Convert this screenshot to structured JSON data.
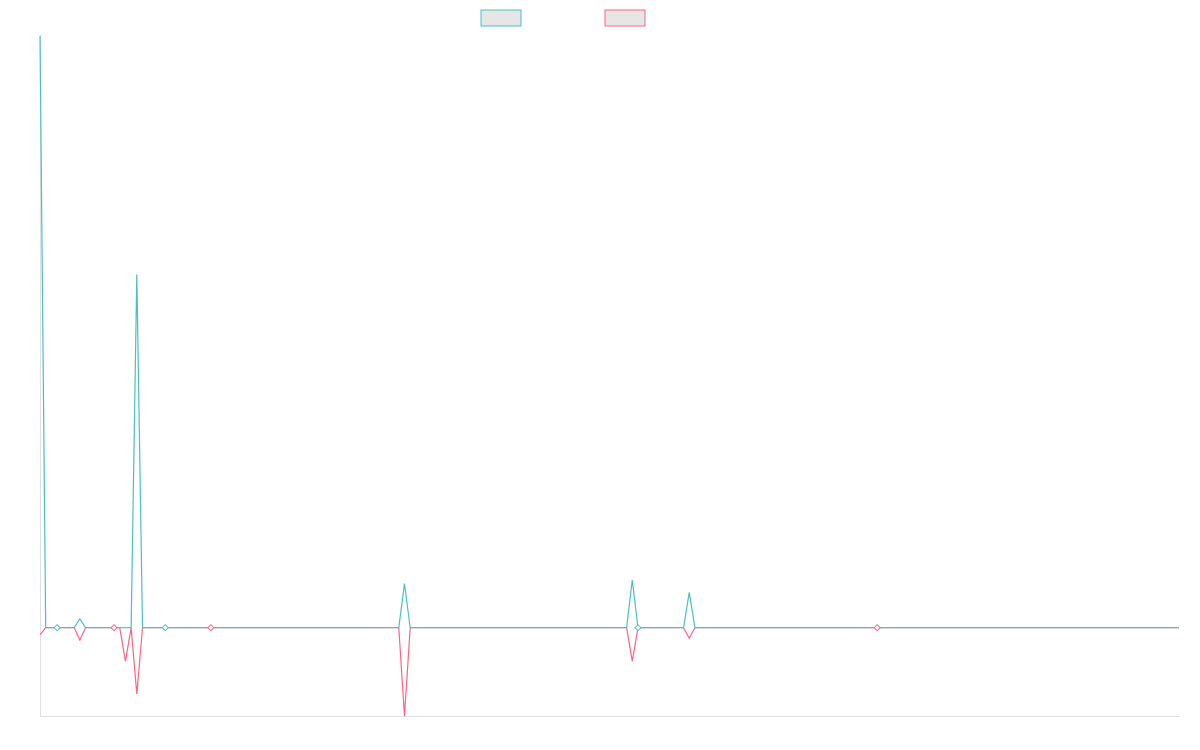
{
  "chart_data": {
    "type": "line",
    "title": "",
    "xlabel": "",
    "ylabel": "",
    "legend_position": "top-center",
    "grid": false,
    "x_range": [
      0,
      200
    ],
    "ylim": [
      -100,
      670
    ],
    "colors": {
      "series1": "#4bc0c0",
      "series2": "#ff6384",
      "legend_fill": "#e6e6e6",
      "axis": "#e0e0e0"
    },
    "series": [
      {
        "color": "#4bc0c0",
        "values": [
          670,
          0,
          0,
          0,
          0,
          0,
          0,
          10,
          0,
          0,
          0,
          0,
          0,
          0,
          0,
          0,
          0,
          400,
          0,
          0,
          0,
          0,
          0,
          0,
          0,
          0,
          0,
          0,
          0,
          0,
          0,
          0,
          0,
          0,
          0,
          0,
          0,
          0,
          0,
          0,
          0,
          0,
          0,
          0,
          0,
          0,
          0,
          0,
          0,
          0,
          0,
          0,
          0,
          0,
          0,
          0,
          0,
          0,
          0,
          0,
          0,
          0,
          0,
          0,
          50,
          0,
          0,
          0,
          0,
          0,
          0,
          0,
          0,
          0,
          0,
          0,
          0,
          0,
          0,
          0,
          0,
          0,
          0,
          0,
          0,
          0,
          0,
          0,
          0,
          0,
          0,
          0,
          0,
          0,
          0,
          0,
          0,
          0,
          0,
          0,
          0,
          0,
          0,
          0,
          54,
          0,
          0,
          0,
          0,
          0,
          0,
          0,
          0,
          0,
          40,
          0,
          0,
          0,
          0,
          0,
          0,
          0,
          0,
          0,
          0,
          0,
          0,
          0,
          0,
          0,
          0,
          0,
          0,
          0,
          0,
          0,
          0,
          0,
          0,
          0,
          0,
          0,
          0,
          0,
          0,
          0,
          0,
          0,
          0,
          0,
          0,
          0,
          0,
          0,
          0,
          0,
          0,
          0,
          0,
          0,
          0,
          0,
          0,
          0,
          0,
          0,
          0,
          0,
          0,
          0,
          0,
          0,
          0,
          0,
          0,
          0,
          0,
          0,
          0,
          0,
          0,
          0,
          0,
          0,
          0,
          0,
          0,
          0,
          0,
          0,
          0,
          0,
          0,
          0,
          0,
          0,
          0,
          0,
          0,
          0,
          0
        ]
      },
      {
        "color": "#ff6384",
        "values": [
          -8,
          0,
          0,
          0,
          0,
          0,
          0,
          -14,
          0,
          0,
          0,
          0,
          0,
          0,
          0,
          -38,
          0,
          -75,
          0,
          0,
          0,
          0,
          0,
          0,
          0,
          0,
          0,
          0,
          0,
          0,
          0,
          0,
          0,
          0,
          0,
          0,
          0,
          0,
          0,
          0,
          0,
          0,
          0,
          0,
          0,
          0,
          0,
          0,
          0,
          0,
          0,
          0,
          0,
          0,
          0,
          0,
          0,
          0,
          0,
          0,
          0,
          0,
          0,
          0,
          -100,
          0,
          0,
          0,
          0,
          0,
          0,
          0,
          0,
          0,
          0,
          0,
          0,
          0,
          0,
          0,
          0,
          0,
          0,
          0,
          0,
          0,
          0,
          0,
          0,
          0,
          0,
          0,
          0,
          0,
          0,
          0,
          0,
          0,
          0,
          0,
          0,
          0,
          0,
          0,
          -38,
          0,
          0,
          0,
          0,
          0,
          0,
          0,
          0,
          0,
          -12,
          0,
          0,
          0,
          0,
          0,
          0,
          0,
          0,
          0,
          0,
          0,
          0,
          0,
          0,
          0,
          0,
          0,
          0,
          0,
          0,
          0,
          0,
          0,
          0,
          0,
          0,
          0,
          0,
          0,
          0,
          0,
          0,
          0,
          0,
          0,
          0,
          0,
          0,
          0,
          0,
          0,
          0,
          0,
          0,
          0,
          0,
          0,
          0,
          0,
          0,
          0,
          0,
          0,
          0,
          0,
          0,
          0,
          0,
          0,
          0,
          0,
          0,
          0,
          0,
          0,
          0,
          0,
          0,
          0,
          0,
          0,
          0,
          0,
          0,
          0,
          0,
          0,
          0,
          0,
          0,
          0,
          0,
          0,
          0,
          0,
          0
        ]
      }
    ],
    "markers": [
      {
        "x": 3,
        "y": 0
      },
      {
        "x": 13,
        "y": 0
      },
      {
        "x": 22,
        "y": 0
      },
      {
        "x": 30,
        "y": 0
      },
      {
        "x": 105,
        "y": 0
      },
      {
        "x": 147,
        "y": 0
      }
    ]
  }
}
